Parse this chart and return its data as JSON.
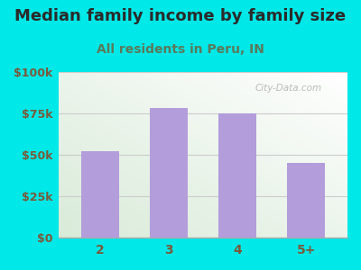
{
  "title": "Median family income by family size",
  "subtitle": "All residents in Peru, IN",
  "categories": [
    "2",
    "3",
    "4",
    "5+"
  ],
  "values": [
    52000,
    78000,
    75000,
    45000
  ],
  "bar_color": "#b39ddb",
  "background_color": "#00e8e8",
  "title_color": "#2a2a2a",
  "subtitle_color": "#5a7a5a",
  "tick_label_color": "#7a5a3a",
  "ylim": [
    0,
    100000
  ],
  "yticks": [
    0,
    25000,
    50000,
    75000,
    100000
  ],
  "ytick_labels": [
    "$0",
    "$25k",
    "$50k",
    "$75k",
    "$100k"
  ],
  "title_fontsize": 13,
  "subtitle_fontsize": 10,
  "watermark": "City-Data.com"
}
